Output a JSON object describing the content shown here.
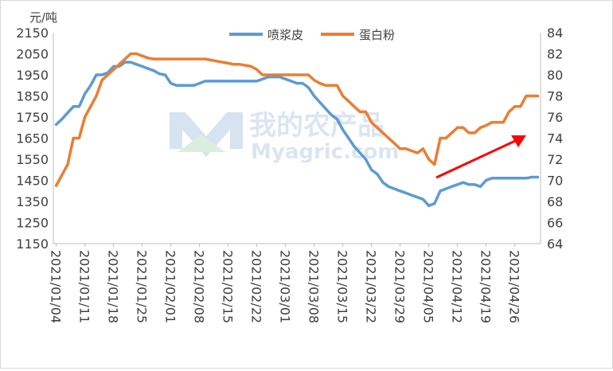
{
  "chart_data": {
    "type": "line",
    "unit_label": "元/吨",
    "legend_position": "top",
    "grid": false,
    "x": [
      "2021/01/04",
      "2021/01/05",
      "2021/01/06",
      "2021/01/07",
      "2021/01/08",
      "2021/01/11",
      "2021/01/12",
      "2021/01/13",
      "2021/01/14",
      "2021/01/15",
      "2021/01/18",
      "2021/01/19",
      "2021/01/20",
      "2021/01/21",
      "2021/01/22",
      "2021/01/25",
      "2021/01/26",
      "2021/01/27",
      "2021/01/28",
      "2021/01/29",
      "2021/02/01",
      "2021/02/02",
      "2021/02/03",
      "2021/02/04",
      "2021/02/05",
      "2021/02/08",
      "2021/02/09",
      "2021/02/10",
      "2021/02/11",
      "2021/02/12",
      "2021/02/15",
      "2021/02/16",
      "2021/02/17",
      "2021/02/18",
      "2021/02/19",
      "2021/02/22",
      "2021/02/23",
      "2021/02/24",
      "2021/02/25",
      "2021/02/26",
      "2021/03/01",
      "2021/03/02",
      "2021/03/03",
      "2021/03/04",
      "2021/03/05",
      "2021/03/08",
      "2021/03/09",
      "2021/03/10",
      "2021/03/11",
      "2021/03/12",
      "2021/03/15",
      "2021/03/16",
      "2021/03/17",
      "2021/03/18",
      "2021/03/19",
      "2021/03/22",
      "2021/03/23",
      "2021/03/24",
      "2021/03/25",
      "2021/03/26",
      "2021/03/29",
      "2021/03/30",
      "2021/03/31",
      "2021/04/01",
      "2021/04/02",
      "2021/04/05",
      "2021/04/06",
      "2021/04/07",
      "2021/04/08",
      "2021/04/09",
      "2021/04/12",
      "2021/04/13",
      "2021/04/14",
      "2021/04/15",
      "2021/04/16",
      "2021/04/19",
      "2021/04/20",
      "2021/04/21",
      "2021/04/22",
      "2021/04/23",
      "2021/04/26",
      "2021/04/27",
      "2021/04/28",
      "2021/04/29",
      "2021/04/30"
    ],
    "x_tick_labels": [
      "2021/01/04",
      "2021/01/11",
      "2021/01/18",
      "2021/01/25",
      "2021/02/01",
      "2021/02/08",
      "2021/02/15",
      "2021/02/22",
      "2021/03/01",
      "2021/03/08",
      "2021/03/15",
      "2021/03/22",
      "2021/03/29",
      "2021/04/05",
      "2021/04/12",
      "2021/04/19",
      "2021/04/26"
    ],
    "y_left": {
      "min": 1150,
      "max": 2150,
      "step": 100,
      "ticks": [
        1150,
        1250,
        1350,
        1450,
        1550,
        1650,
        1750,
        1850,
        1950,
        2050,
        2150
      ]
    },
    "y_right": {
      "min": 64,
      "max": 84,
      "step": 2,
      "ticks": [
        64,
        66,
        68,
        70,
        72,
        74,
        76,
        78,
        80,
        82,
        84
      ]
    },
    "series": [
      {
        "name": "喷浆皮",
        "axis": "left",
        "color": "#5b9bd5",
        "values": [
          1715,
          1740,
          1770,
          1800,
          1800,
          1860,
          1900,
          1950,
          1950,
          1960,
          1990,
          1990,
          2010,
          2010,
          2000,
          1990,
          1980,
          1970,
          1955,
          1950,
          1910,
          1900,
          1900,
          1900,
          1900,
          1910,
          1920,
          1920,
          1920,
          1920,
          1920,
          1920,
          1920,
          1920,
          1920,
          1920,
          1930,
          1940,
          1940,
          1940,
          1930,
          1920,
          1910,
          1910,
          1890,
          1850,
          1820,
          1790,
          1760,
          1740,
          1690,
          1650,
          1610,
          1580,
          1550,
          1500,
          1480,
          1440,
          1420,
          1410,
          1400,
          1390,
          1380,
          1370,
          1360,
          1330,
          1340,
          1400,
          1410,
          1420,
          1430,
          1440,
          1430,
          1430,
          1420,
          1450,
          1460,
          1460,
          1460,
          1460,
          1460,
          1460,
          1460,
          1465,
          1465
        ]
      },
      {
        "name": "蛋白粉",
        "axis": "right",
        "color": "#ed7d31",
        "values": [
          69.5,
          70.5,
          71.5,
          74,
          74,
          76,
          77,
          78,
          79.5,
          80,
          80.5,
          81,
          81.5,
          82,
          82,
          81.8,
          81.6,
          81.5,
          81.5,
          81.5,
          81.5,
          81.5,
          81.5,
          81.5,
          81.5,
          81.5,
          81.5,
          81.4,
          81.3,
          81.2,
          81.1,
          81,
          81,
          80.9,
          80.8,
          80.5,
          80,
          80,
          80,
          80,
          80,
          80,
          80,
          80,
          80,
          79.5,
          79.2,
          79,
          79,
          79,
          78,
          77.5,
          77,
          76.5,
          76.5,
          75.5,
          75,
          74.5,
          74,
          73.5,
          73,
          73,
          72.8,
          72.6,
          73,
          72,
          71.5,
          74,
          74,
          74.5,
          75,
          75,
          74.5,
          74.5,
          75,
          75.2,
          75.5,
          75.5,
          75.5,
          76.5,
          77,
          77,
          78,
          78,
          78
        ]
      }
    ]
  },
  "watermark": {
    "line1": "我的农产品",
    "line2": "Myagric.com"
  }
}
